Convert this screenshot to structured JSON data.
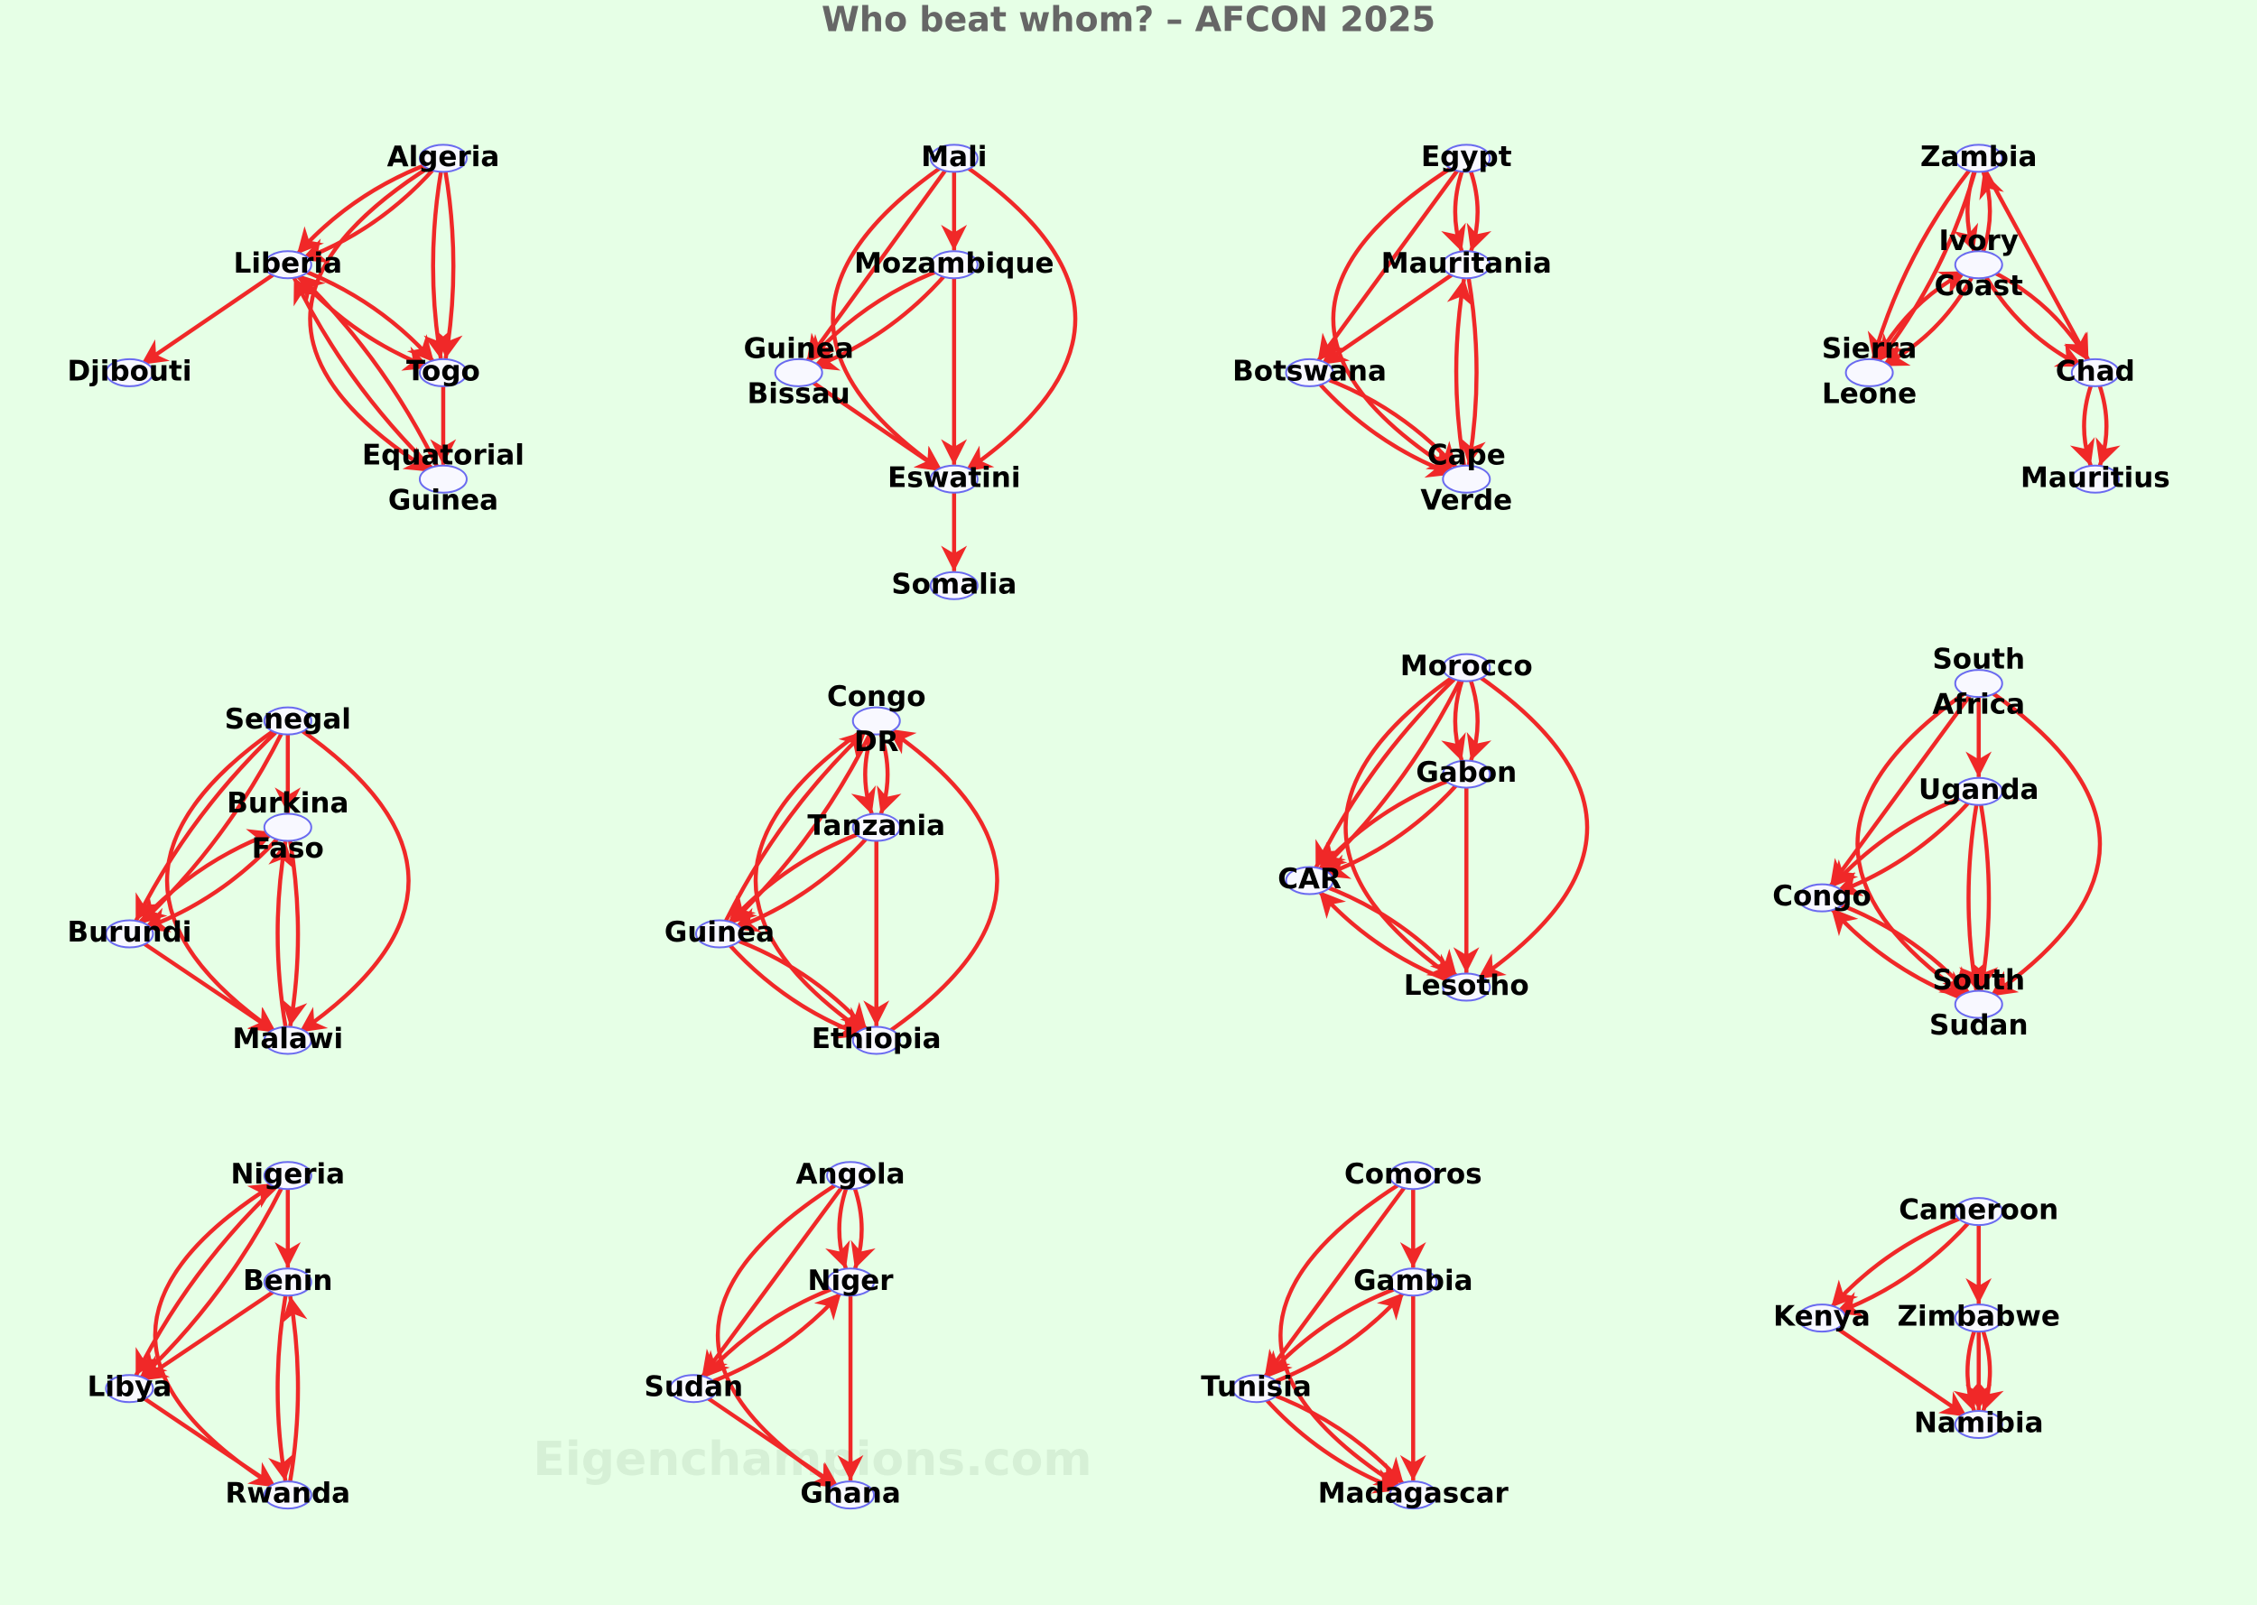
{
  "title": "Who beat whom? – AFCON 2025",
  "watermark": "Eigenchampions.com",
  "groups": [
    {
      "nodes": [
        {
          "label": [
            "Algeria"
          ]
        },
        {
          "label": [
            "Liberia"
          ]
        },
        {
          "label": [
            "Djibouti"
          ]
        },
        {
          "label": [
            "Togo"
          ]
        },
        {
          "label": [
            "Equatorial",
            "Guinea"
          ]
        }
      ],
      "edges": [
        [
          0,
          1
        ],
        [
          0,
          1
        ],
        [
          0,
          3
        ],
        [
          0,
          3
        ],
        [
          0,
          4
        ],
        [
          1,
          2
        ],
        [
          1,
          3
        ],
        [
          1,
          3
        ],
        [
          3,
          4
        ],
        [
          4,
          1
        ],
        [
          4,
          1
        ]
      ]
    },
    {
      "nodes": [
        {
          "label": [
            "Mali"
          ]
        },
        {
          "label": [
            "Mozambique"
          ]
        },
        {
          "label": [
            "Guinea",
            "Bissau"
          ]
        },
        {
          "label": [
            "Eswatini"
          ]
        },
        {
          "label": [
            "Somalia"
          ]
        }
      ],
      "edges": [
        [
          0,
          1
        ],
        [
          0,
          2
        ],
        [
          0,
          3
        ],
        [
          0,
          3
        ],
        [
          1,
          2
        ],
        [
          1,
          2
        ],
        [
          1,
          3
        ],
        [
          2,
          3
        ],
        [
          3,
          4
        ]
      ]
    },
    {
      "nodes": [
        {
          "label": [
            "Egypt"
          ]
        },
        {
          "label": [
            "Mauritania"
          ]
        },
        {
          "label": [
            "Botswana"
          ]
        },
        {
          "label": [
            "Cape",
            "Verde"
          ]
        }
      ],
      "edges": [
        [
          0,
          1
        ],
        [
          0,
          1
        ],
        [
          0,
          2
        ],
        [
          0,
          3
        ],
        [
          1,
          2
        ],
        [
          1,
          3
        ],
        [
          3,
          1
        ],
        [
          2,
          3
        ],
        [
          2,
          3
        ]
      ]
    },
    {
      "nodes": [
        {
          "label": [
            "Zambia"
          ]
        },
        {
          "label": [
            "Ivory",
            "Coast"
          ]
        },
        {
          "label": [
            "Sierra",
            "Leone"
          ]
        },
        {
          "label": [
            "Chad"
          ]
        },
        {
          "label": [
            "Mauritius"
          ]
        }
      ],
      "edges": [
        [
          0,
          2
        ],
        [
          0,
          2
        ],
        [
          0,
          3
        ],
        [
          1,
          0
        ],
        [
          0,
          1
        ],
        [
          1,
          2
        ],
        [
          2,
          1
        ],
        [
          1,
          3
        ],
        [
          1,
          3
        ],
        [
          3,
          4
        ],
        [
          3,
          4
        ]
      ]
    },
    {
      "nodes": [
        {
          "label": [
            "Senegal"
          ]
        },
        {
          "label": [
            "Burkina",
            "Faso"
          ]
        },
        {
          "label": [
            "Burundi"
          ]
        },
        {
          "label": [
            "Malawi"
          ]
        }
      ],
      "edges": [
        [
          0,
          1
        ],
        [
          0,
          2
        ],
        [
          0,
          2
        ],
        [
          0,
          3
        ],
        [
          0,
          3
        ],
        [
          1,
          2
        ],
        [
          2,
          1
        ],
        [
          2,
          3
        ],
        [
          1,
          3
        ],
        [
          3,
          1
        ]
      ]
    },
    {
      "nodes": [
        {
          "label": [
            "Congo",
            "DR"
          ]
        },
        {
          "label": [
            "Tanzania"
          ]
        },
        {
          "label": [
            "Guinea"
          ]
        },
        {
          "label": [
            "Ethiopia"
          ]
        }
      ],
      "edges": [
        [
          0,
          1
        ],
        [
          0,
          1
        ],
        [
          0,
          2
        ],
        [
          2,
          0
        ],
        [
          1,
          2
        ],
        [
          1,
          2
        ],
        [
          1,
          3
        ],
        [
          2,
          3
        ],
        [
          2,
          3
        ],
        [
          0,
          3
        ],
        [
          3,
          0
        ]
      ]
    },
    {
      "nodes": [
        {
          "label": [
            "Morocco"
          ]
        },
        {
          "label": [
            "Gabon"
          ]
        },
        {
          "label": [
            "CAR"
          ]
        },
        {
          "label": [
            "Lesotho"
          ]
        }
      ],
      "edges": [
        [
          0,
          1
        ],
        [
          0,
          1
        ],
        [
          0,
          2
        ],
        [
          0,
          2
        ],
        [
          0,
          3
        ],
        [
          0,
          3
        ],
        [
          1,
          2
        ],
        [
          1,
          2
        ],
        [
          1,
          3
        ],
        [
          2,
          3
        ],
        [
          3,
          2
        ]
      ]
    },
    {
      "nodes": [
        {
          "label": [
            "South",
            "Africa"
          ]
        },
        {
          "label": [
            "Uganda"
          ]
        },
        {
          "label": [
            "Congo"
          ]
        },
        {
          "label": [
            "South",
            "Sudan"
          ]
        }
      ],
      "edges": [
        [
          0,
          1
        ],
        [
          0,
          2
        ],
        [
          0,
          3
        ],
        [
          0,
          3
        ],
        [
          1,
          2
        ],
        [
          1,
          2
        ],
        [
          1,
          3
        ],
        [
          1,
          3
        ],
        [
          2,
          3
        ],
        [
          3,
          2
        ]
      ]
    },
    {
      "nodes": [
        {
          "label": [
            "Nigeria"
          ]
        },
        {
          "label": [
            "Benin"
          ]
        },
        {
          "label": [
            "Libya"
          ]
        },
        {
          "label": [
            "Rwanda"
          ]
        }
      ],
      "edges": [
        [
          0,
          1
        ],
        [
          0,
          2
        ],
        [
          0,
          2
        ],
        [
          1,
          2
        ],
        [
          2,
          3
        ],
        [
          3,
          1
        ],
        [
          1,
          3
        ],
        [
          3,
          0
        ]
      ]
    },
    {
      "nodes": [
        {
          "label": [
            "Angola"
          ]
        },
        {
          "label": [
            "Niger"
          ]
        },
        {
          "label": [
            "Sudan"
          ]
        },
        {
          "label": [
            "Ghana"
          ]
        }
      ],
      "edges": [
        [
          0,
          1
        ],
        [
          0,
          1
        ],
        [
          0,
          2
        ],
        [
          0,
          3
        ],
        [
          2,
          1
        ],
        [
          1,
          2
        ],
        [
          1,
          3
        ],
        [
          2,
          3
        ]
      ]
    },
    {
      "nodes": [
        {
          "label": [
            "Comoros"
          ]
        },
        {
          "label": [
            "Gambia"
          ]
        },
        {
          "label": [
            "Tunisia"
          ]
        },
        {
          "label": [
            "Madagascar"
          ]
        }
      ],
      "edges": [
        [
          0,
          1
        ],
        [
          0,
          2
        ],
        [
          0,
          3
        ],
        [
          2,
          1
        ],
        [
          1,
          2
        ],
        [
          1,
          3
        ],
        [
          2,
          3
        ],
        [
          2,
          3
        ]
      ]
    },
    {
      "nodes": [
        {
          "label": [
            "Cameroon"
          ]
        },
        {
          "label": [
            "Kenya"
          ]
        },
        {
          "label": [
            "Zimbabwe"
          ]
        },
        {
          "label": [
            "Namibia"
          ]
        }
      ],
      "edges": [
        [
          0,
          1
        ],
        [
          0,
          1
        ],
        [
          0,
          2
        ],
        [
          0,
          3
        ],
        [
          1,
          3
        ],
        [
          2,
          3
        ],
        [
          2,
          3
        ]
      ]
    }
  ]
}
